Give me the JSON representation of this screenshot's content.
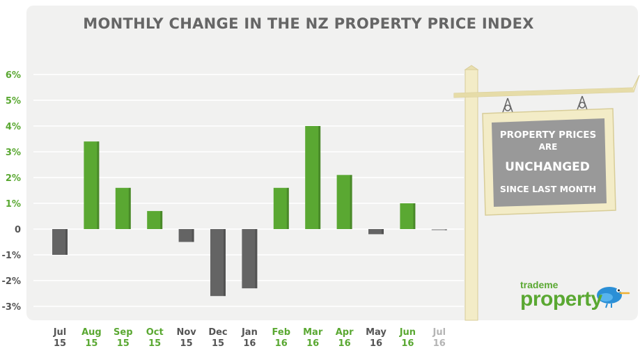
{
  "chart_data": {
    "type": "bar",
    "title": "MONTHLY CHANGE IN THE NZ PROPERTY PRICE INDEX",
    "categories": [
      {
        "month": "Jul",
        "year": "15"
      },
      {
        "month": "Aug",
        "year": "15"
      },
      {
        "month": "Sep",
        "year": "15"
      },
      {
        "month": "Oct",
        "year": "15"
      },
      {
        "month": "Nov",
        "year": "15"
      },
      {
        "month": "Dec",
        "year": "15"
      },
      {
        "month": "Jan",
        "year": "16"
      },
      {
        "month": "Feb",
        "year": "16"
      },
      {
        "month": "Mar",
        "year": "16"
      },
      {
        "month": "Apr",
        "year": "16"
      },
      {
        "month": "May",
        "year": "16"
      },
      {
        "month": "Jun",
        "year": "16"
      },
      {
        "month": "Jul",
        "year": "16"
      }
    ],
    "values": [
      -1.0,
      3.4,
      1.6,
      0.7,
      -0.5,
      -2.6,
      -2.3,
      1.6,
      4.0,
      2.1,
      -0.2,
      1.0,
      -0.05
    ],
    "ytick_labels": [
      "6%",
      "5%",
      "4%",
      "3%",
      "2%",
      "1%",
      "0",
      "-1%",
      "-2%",
      "-3%"
    ],
    "ylim": [
      -3,
      6
    ],
    "grid": true,
    "colors": {
      "positive": "#5aa832",
      "negative": "#646464",
      "current": "#b4b4b4",
      "tick_positive": "#5aa832",
      "tick_negative": "#555555"
    }
  },
  "sign": {
    "line1": "PROPERTY PRICES",
    "line2": "ARE",
    "line3": "UNCHANGED",
    "line4": "SINCE LAST MONTH"
  },
  "logo": {
    "top": "trademe",
    "main": "property",
    "icon": "kiwi-bird-icon"
  }
}
